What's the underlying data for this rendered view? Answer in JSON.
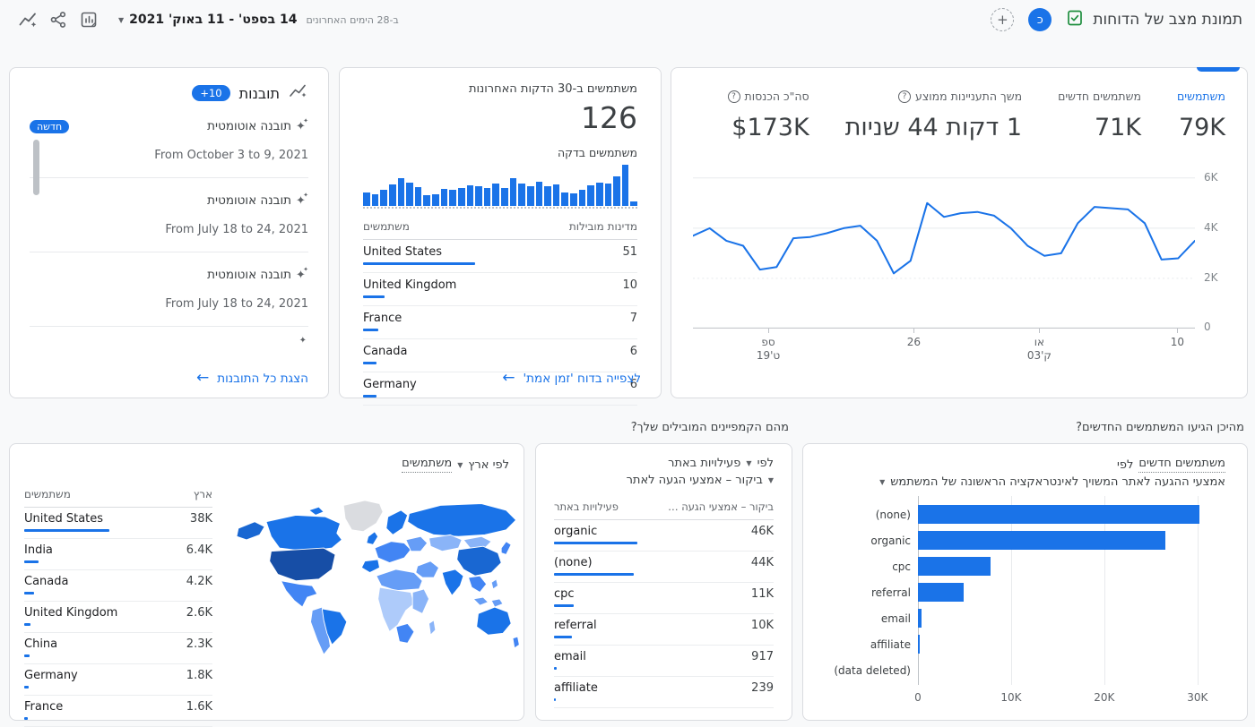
{
  "colors": {
    "accent": "#1a73e8",
    "green_icon": "#1e8e3e",
    "map_shades": [
      "#174ea6",
      "#1967d2",
      "#1a73e8",
      "#4285f4",
      "#669df6",
      "#8ab4f8",
      "#aecbfa",
      "#dadce0"
    ]
  },
  "header": {
    "title": "תמונת מצב של הדוחות",
    "avatar_letter": "כ",
    "add_glyph": "+",
    "caret_glyph": "▼",
    "date_range": "14 בספט' - 11 באוק' 2021",
    "date_hint": "ב-28 הימים האחרונים"
  },
  "insights_card": {
    "title": "תובנות",
    "count_badge": "+10",
    "items": [
      {
        "title": "תובנה אוטומטית",
        "badge": "חדשה",
        "date": "From October 3 to 9, 2021"
      },
      {
        "title": "תובנה אוטומטית",
        "badge": "",
        "date": "From July 18 to 24, 2021"
      },
      {
        "title": "תובנה אוטומטית",
        "badge": "",
        "date": "From July 18 to 24, 2021"
      }
    ],
    "partial_glyph": "✦",
    "link": {
      "arrow": "←",
      "label": "הצגת כל התובנות"
    }
  },
  "realtime_card": {
    "title": "משתמשים ב-30 הדקות האחרונות",
    "value": "126",
    "subtitle": "משתמשים בדקה",
    "chart_data": {
      "type": "bar",
      "title": "users-per-minute",
      "values": [
        33,
        29,
        40,
        52,
        67,
        57,
        45,
        26,
        29,
        41,
        40,
        43,
        50,
        48,
        43,
        55,
        43,
        67,
        55,
        48,
        59,
        48,
        52,
        33,
        31,
        40,
        50,
        57,
        55,
        71,
        100,
        10
      ]
    },
    "table": {
      "metric_header": "משתמשים",
      "dim_header": "מדינות מובילות",
      "rows": [
        {
          "name": "United States",
          "value": "51",
          "pct": 41
        },
        {
          "name": "United Kingdom",
          "value": "10",
          "pct": 8
        },
        {
          "name": "France",
          "value": "7",
          "pct": 5.6
        },
        {
          "name": "Canada",
          "value": "6",
          "pct": 4.8
        },
        {
          "name": "Germany",
          "value": "6",
          "pct": 4.8
        }
      ]
    },
    "link": {
      "arrow": "←",
      "label": "לצפייה בדוח 'זמן אמת'"
    }
  },
  "overview_card": {
    "metrics": [
      {
        "label": "משתמשים",
        "value": "79K",
        "label_color": "#1a73e8",
        "selected": true
      },
      {
        "label": "משתמשים חדשים",
        "value": "71K"
      },
      {
        "label": "משך התעניינות ממוצע",
        "value": "1 דקות 44 שניות",
        "help": "?"
      },
      {
        "label": "סה\"כ הכנסות",
        "value": "$173K",
        "help": "?"
      }
    ],
    "chart_data": {
      "type": "line",
      "series_name": "משתמשים",
      "unit": "K",
      "values": [
        3.7,
        4.0,
        3.5,
        3.3,
        2.35,
        2.45,
        3.6,
        3.65,
        3.8,
        4.0,
        4.1,
        3.5,
        2.2,
        2.7,
        5.0,
        4.45,
        4.6,
        4.65,
        4.5,
        4.0,
        3.3,
        2.9,
        3.0,
        4.2,
        4.85,
        4.8,
        4.75,
        4.2,
        2.75,
        2.8,
        3.5
      ],
      "ylim": [
        0,
        6.6
      ],
      "gridlines": [
        {
          "value": 6,
          "label": "6K"
        },
        {
          "value": 4,
          "label": "4K"
        },
        {
          "value": 2,
          "label": "2K",
          "dashed": true
        },
        {
          "value": 0,
          "label": "0"
        }
      ],
      "xticks": [
        {
          "pos": 15,
          "line1": "ספ",
          "line2": "ט'19"
        },
        {
          "pos": 44,
          "line1": "26",
          "line2": ""
        },
        {
          "pos": 69,
          "line1": "או",
          "line2": "ק'03"
        },
        {
          "pos": 96.5,
          "line1": "10",
          "line2": ""
        }
      ]
    }
  },
  "geo_card": {
    "title": {
      "metric": "משתמשים",
      "caret": "▼",
      "rest": "לפי ארץ"
    },
    "table": {
      "metric_header": "משתמשים",
      "dim_header": "ארץ",
      "rows": [
        {
          "name": "United States",
          "value": "38K",
          "pct": 45
        },
        {
          "name": "India",
          "value": "6.4K",
          "pct": 7.6
        },
        {
          "name": "Canada",
          "value": "4.2K",
          "pct": 5
        },
        {
          "name": "United Kingdom",
          "value": "2.6K",
          "pct": 3.1
        },
        {
          "name": "China",
          "value": "2.3K",
          "pct": 2.8
        },
        {
          "name": "Germany",
          "value": "1.8K",
          "pct": 2.2
        },
        {
          "name": "France",
          "value": "1.6K",
          "pct": 1.9
        }
      ]
    }
  },
  "campaigns_card": {
    "question": "מהם הקמפיינים המובילים שלך?",
    "title": {
      "metric": "פעילויות באתר",
      "caret": "▼",
      "by": "לפי"
    },
    "subtitle": {
      "dim": "ביקור – אמצעי הגעה לאתר",
      "caret": "▼"
    },
    "table": {
      "metric_header": "פעילויות באתר",
      "dim_header": "ביקור – אמצעי הגעה …",
      "rows": [
        {
          "name": "organic",
          "value": "46K",
          "pct": 38
        },
        {
          "name": "(none)",
          "value": "44K",
          "pct": 36.5
        },
        {
          "name": "cpc",
          "value": "11K",
          "pct": 9
        },
        {
          "name": "referral",
          "value": "10K",
          "pct": 8.3
        },
        {
          "name": "email",
          "value": "917",
          "pct": 1.4
        },
        {
          "name": "affiliate",
          "value": "239",
          "pct": 0.8
        }
      ]
    }
  },
  "acquisition_card": {
    "question": "מהיכן הגיעו המשתמשים החדשים?",
    "title": {
      "by": "לפי",
      "metric": "משתמשים חדשים"
    },
    "subtitle": {
      "caret": "▼",
      "dim": "אמצעי ההגעה לאתר המשויך לאינטראקציה הראשונה של המשתמש"
    },
    "chart_data": {
      "type": "bar",
      "orientation": "horizontal",
      "xlim": [
        0,
        33000
      ],
      "rows": [
        {
          "label": "(none)",
          "value": 30200,
          "pct": 91.5
        },
        {
          "label": "organic",
          "value": 26600,
          "pct": 80.6
        },
        {
          "label": "cpc",
          "value": 7800,
          "pct": 23.6
        },
        {
          "label": "referral",
          "value": 4900,
          "pct": 14.8
        },
        {
          "label": "email",
          "value": 380,
          "pct": 1.2
        },
        {
          "label": "affiliate",
          "value": 160,
          "pct": 0.6
        },
        {
          "label": "(data deleted)",
          "value": 0,
          "pct": 0
        }
      ],
      "xticks": [
        {
          "label": "0",
          "pct": 0
        },
        {
          "label": "10K",
          "pct": 30.3
        },
        {
          "label": "20K",
          "pct": 60.6
        },
        {
          "label": "30K",
          "pct": 90.9
        }
      ]
    }
  }
}
